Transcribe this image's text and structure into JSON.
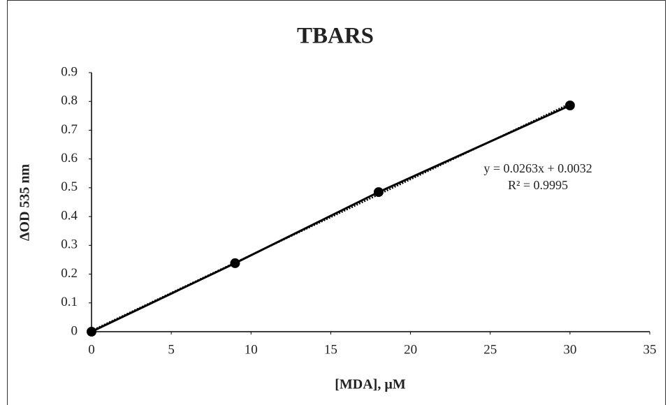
{
  "chart_data": {
    "type": "scatter",
    "title": "TBARS",
    "x_label": "[MDA], µM",
    "y_label": "ΔOD 535 nm",
    "x": [
      0,
      9,
      18,
      30
    ],
    "series": [
      {
        "name": "TBARS",
        "color": "#000000",
        "values": [
          0,
          0.238,
          0.485,
          0.786
        ]
      }
    ],
    "trendline": {
      "slope": 0.0263,
      "intercept": 0.0032,
      "equation": "y = 0.0263x + 0.0032",
      "r_squared": "R² = 0.9995"
    },
    "xlim": [
      0,
      35
    ],
    "xticks": [
      0,
      5,
      10,
      15,
      20,
      25,
      30,
      35
    ],
    "ylim": [
      0,
      0.9
    ],
    "yticks": [
      0,
      0.1,
      0.2,
      0.3,
      0.4,
      0.5,
      0.6,
      0.7,
      0.8,
      0.9
    ],
    "grid": false
  }
}
